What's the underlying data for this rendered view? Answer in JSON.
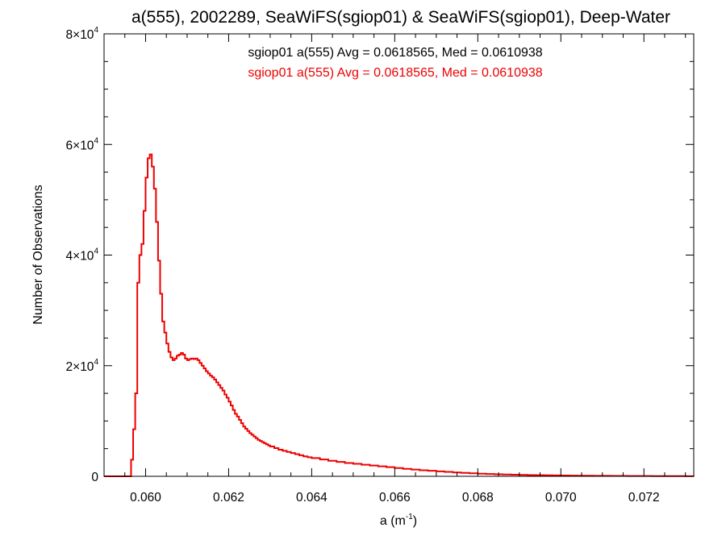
{
  "chart_data": {
    "type": "histogram",
    "title": "a(555), 2002289, SeaWiFS(sgiop01) & SeaWiFS(sgiop01), Deep-Water",
    "xlabel": "a (m",
    "xlabel_exponent": "-1",
    "xlabel_suffix": ")",
    "ylabel": "Number of Observations",
    "xlim": [
      0.059,
      0.0732
    ],
    "ylim": [
      0,
      80000
    ],
    "grid": false,
    "x_ticks": [
      {
        "value": 0.06,
        "label": "0.060"
      },
      {
        "value": 0.062,
        "label": "0.062"
      },
      {
        "value": 0.064,
        "label": "0.064"
      },
      {
        "value": 0.066,
        "label": "0.066"
      },
      {
        "value": 0.068,
        "label": "0.068"
      },
      {
        "value": 0.07,
        "label": "0.070"
      },
      {
        "value": 0.072,
        "label": "0.072"
      }
    ],
    "y_ticks": [
      {
        "value": 0,
        "mantissa": "0",
        "exponent": ""
      },
      {
        "value": 20000,
        "mantissa": "2×10",
        "exponent": "4"
      },
      {
        "value": 40000,
        "mantissa": "4×10",
        "exponent": "4"
      },
      {
        "value": 60000,
        "mantissa": "6×10",
        "exponent": "4"
      },
      {
        "value": 80000,
        "mantissa": "8×10",
        "exponent": "4"
      }
    ],
    "annotations": [
      {
        "text": "sgiop01 a(555) Avg = 0.0618565, Med = 0.0610938",
        "color": "#000000"
      },
      {
        "text": "sgiop01 a(555) Avg = 0.0618565, Med = 0.0610938",
        "color": "#ee0000"
      }
    ],
    "series": [
      {
        "color": "#ee0000",
        "points": [
          [
            0.059,
            0
          ],
          [
            0.0596,
            0
          ],
          [
            0.05965,
            3000
          ],
          [
            0.0597,
            8500
          ],
          [
            0.05975,
            15000
          ],
          [
            0.0598,
            35000
          ],
          [
            0.05985,
            40000
          ],
          [
            0.0599,
            42000
          ],
          [
            0.05995,
            48000
          ],
          [
            0.06,
            54000
          ],
          [
            0.06005,
            57500
          ],
          [
            0.0601,
            58200
          ],
          [
            0.06015,
            56000
          ],
          [
            0.0602,
            52000
          ],
          [
            0.06025,
            46000
          ],
          [
            0.0603,
            39000
          ],
          [
            0.06035,
            33000
          ],
          [
            0.0604,
            28000
          ],
          [
            0.06045,
            26000
          ],
          [
            0.0605,
            24000
          ],
          [
            0.06055,
            22500
          ],
          [
            0.0606,
            21500
          ],
          [
            0.06065,
            21000
          ],
          [
            0.0607,
            21300
          ],
          [
            0.06075,
            21800
          ],
          [
            0.0608,
            22000
          ],
          [
            0.06085,
            22300
          ],
          [
            0.0609,
            22000
          ],
          [
            0.06095,
            21300
          ],
          [
            0.061,
            21000
          ],
          [
            0.06105,
            21200
          ],
          [
            0.0611,
            21300
          ],
          [
            0.06115,
            21200
          ],
          [
            0.0612,
            21300
          ],
          [
            0.06125,
            21000
          ],
          [
            0.0613,
            20500
          ],
          [
            0.06135,
            20000
          ],
          [
            0.0614,
            19500
          ],
          [
            0.06145,
            19000
          ],
          [
            0.0615,
            18600
          ],
          [
            0.06155,
            18200
          ],
          [
            0.0616,
            17900
          ],
          [
            0.06165,
            17500
          ],
          [
            0.0617,
            17000
          ],
          [
            0.06175,
            16500
          ],
          [
            0.0618,
            16000
          ],
          [
            0.06185,
            15500
          ],
          [
            0.0619,
            14800
          ],
          [
            0.06195,
            14200
          ],
          [
            0.062,
            13500
          ],
          [
            0.06205,
            12800
          ],
          [
            0.0621,
            12000
          ],
          [
            0.06215,
            11300
          ],
          [
            0.0622,
            10800
          ],
          [
            0.06225,
            10200
          ],
          [
            0.0623,
            9600
          ],
          [
            0.06235,
            9000
          ],
          [
            0.0624,
            8600
          ],
          [
            0.06245,
            8200
          ],
          [
            0.0625,
            7800
          ],
          [
            0.06255,
            7500
          ],
          [
            0.0626,
            7200
          ],
          [
            0.06265,
            6900
          ],
          [
            0.0627,
            6600
          ],
          [
            0.06275,
            6400
          ],
          [
            0.0628,
            6200
          ],
          [
            0.06285,
            6000
          ],
          [
            0.0629,
            5800
          ],
          [
            0.06295,
            5600
          ],
          [
            0.063,
            5400
          ],
          [
            0.0631,
            5100
          ],
          [
            0.0632,
            4800
          ],
          [
            0.0633,
            4600
          ],
          [
            0.0634,
            4400
          ],
          [
            0.0635,
            4200
          ],
          [
            0.0636,
            4000
          ],
          [
            0.0637,
            3800
          ],
          [
            0.0638,
            3600
          ],
          [
            0.0639,
            3450
          ],
          [
            0.064,
            3300
          ],
          [
            0.0642,
            3050
          ],
          [
            0.0644,
            2800
          ],
          [
            0.0646,
            2600
          ],
          [
            0.0648,
            2400
          ],
          [
            0.065,
            2250
          ],
          [
            0.0652,
            2100
          ],
          [
            0.0654,
            1950
          ],
          [
            0.0656,
            1800
          ],
          [
            0.0658,
            1650
          ],
          [
            0.066,
            1500
          ],
          [
            0.0662,
            1350
          ],
          [
            0.0664,
            1220
          ],
          [
            0.0666,
            1100
          ],
          [
            0.0668,
            1000
          ],
          [
            0.067,
            900
          ],
          [
            0.0672,
            800
          ],
          [
            0.0674,
            700
          ],
          [
            0.0676,
            620
          ],
          [
            0.0678,
            550
          ],
          [
            0.068,
            480
          ],
          [
            0.0682,
            420
          ],
          [
            0.0684,
            370
          ],
          [
            0.0686,
            330
          ],
          [
            0.0688,
            290
          ],
          [
            0.069,
            250
          ],
          [
            0.0692,
            220
          ],
          [
            0.0694,
            200
          ],
          [
            0.0696,
            180
          ],
          [
            0.0698,
            160
          ],
          [
            0.07,
            145
          ],
          [
            0.0702,
            130
          ],
          [
            0.0704,
            118
          ],
          [
            0.0706,
            105
          ],
          [
            0.0708,
            95
          ],
          [
            0.071,
            85
          ],
          [
            0.0712,
            75
          ],
          [
            0.0714,
            68
          ],
          [
            0.0716,
            60
          ],
          [
            0.0718,
            54
          ],
          [
            0.072,
            48
          ],
          [
            0.0722,
            43
          ],
          [
            0.0724,
            38
          ],
          [
            0.0726,
            34
          ],
          [
            0.0728,
            30
          ],
          [
            0.073,
            26
          ],
          [
            0.0732,
            22
          ]
        ]
      }
    ]
  }
}
